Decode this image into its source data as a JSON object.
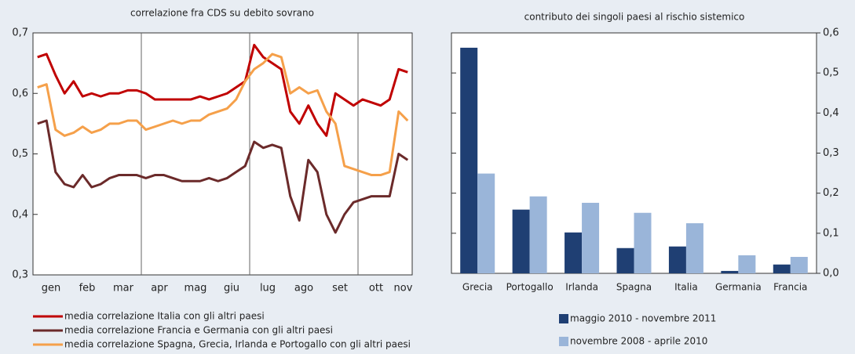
{
  "chart_data": [
    {
      "type": "line",
      "title": "correlazione fra CDS su debito sovrano",
      "categories": [
        null,
        "gen",
        null,
        null,
        null,
        "feb",
        null,
        null,
        null,
        "mar",
        null,
        null,
        null,
        "apr",
        null,
        null,
        null,
        "mag",
        null,
        null,
        null,
        "giu",
        null,
        null,
        null,
        "lug",
        null,
        null,
        null,
        "ago",
        null,
        null,
        null,
        "set",
        null,
        null,
        null,
        "ott",
        null,
        null,
        "nov",
        null
      ],
      "series": [
        {
          "name": "media correlazione Italia con gli altri paesi",
          "color": "#c00000",
          "values": [
            0.66,
            0.665,
            0.63,
            0.6,
            0.62,
            0.595,
            0.6,
            0.595,
            0.6,
            0.6,
            0.605,
            0.605,
            0.6,
            0.59,
            0.59,
            0.59,
            0.59,
            0.59,
            0.595,
            0.59,
            0.595,
            0.6,
            0.61,
            0.62,
            0.68,
            0.66,
            0.65,
            0.64,
            0.57,
            0.55,
            0.58,
            0.55,
            0.53,
            0.6,
            0.59,
            0.58,
            0.59,
            0.585,
            0.58,
            0.59,
            0.64,
            0.635
          ]
        },
        {
          "name": "media correlazione Francia e Germania con gli altri paesi",
          "color": "#6b2a2a",
          "values": [
            0.55,
            0.555,
            0.47,
            0.45,
            0.445,
            0.465,
            0.445,
            0.45,
            0.46,
            0.465,
            0.465,
            0.465,
            0.46,
            0.465,
            0.465,
            0.46,
            0.455,
            0.455,
            0.455,
            0.46,
            0.455,
            0.46,
            0.47,
            0.48,
            0.52,
            0.51,
            0.515,
            0.51,
            0.43,
            0.39,
            0.49,
            0.47,
            0.4,
            0.37,
            0.4,
            0.42,
            0.425,
            0.43,
            0.43,
            0.43,
            0.5,
            0.49
          ]
        },
        {
          "name": "media correlazione Spagna, Grecia, Irlanda e Portogallo con gli altri paesi",
          "color": "#f5a04a",
          "values": [
            0.61,
            0.615,
            0.54,
            0.53,
            0.535,
            0.545,
            0.535,
            0.54,
            0.55,
            0.55,
            0.555,
            0.555,
            0.54,
            0.545,
            0.55,
            0.555,
            0.55,
            0.555,
            0.555,
            0.565,
            0.57,
            0.575,
            0.59,
            0.62,
            0.64,
            0.65,
            0.665,
            0.66,
            0.6,
            0.61,
            0.6,
            0.605,
            0.57,
            0.55,
            0.48,
            0.475,
            0.47,
            0.465,
            0.465,
            0.47,
            0.57,
            0.555
          ]
        }
      ],
      "ylim": [
        0.3,
        0.7
      ],
      "yticks": [
        {
          "value": 0.3,
          "label": "0,3"
        },
        {
          "value": 0.4,
          "label": "0,4"
        },
        {
          "value": 0.5,
          "label": "0,5"
        },
        {
          "value": 0.6,
          "label": "0,6"
        },
        {
          "value": 0.7,
          "label": "0,7"
        }
      ],
      "y_axis_side": "left",
      "legend": "bottom"
    },
    {
      "type": "bar",
      "title": "contributo dei singoli paesi al rischio sistemico",
      "categories": [
        "Grecia",
        "Portogallo",
        "Irlanda",
        "Spagna",
        "Italia",
        "Germania",
        "Francia"
      ],
      "series": [
        {
          "name": "maggio 2010 - novembre 2011",
          "color": "#1f3f73",
          "values": [
            0.563,
            0.159,
            0.102,
            0.063,
            0.067,
            0.006,
            0.022
          ]
        },
        {
          "name": "novembre 2008 - aprile 2010",
          "color": "#9ab5d9",
          "values": [
            0.249,
            0.192,
            0.176,
            0.151,
            0.125,
            0.045,
            0.041
          ]
        }
      ],
      "ylim": [
        0,
        0.6
      ],
      "yticks": [
        {
          "value": 0,
          "label": "0,0"
        },
        {
          "value": 0.1,
          "label": "0,1"
        },
        {
          "value": 0.2,
          "label": "0,2"
        },
        {
          "value": 0.3,
          "label": "0,3"
        },
        {
          "value": 0.4,
          "label": "0,4"
        },
        {
          "value": 0.5,
          "label": "0,5"
        },
        {
          "value": 0.6,
          "label": "0,6"
        }
      ],
      "y_axis_side": "right",
      "legend": "bottom"
    }
  ]
}
